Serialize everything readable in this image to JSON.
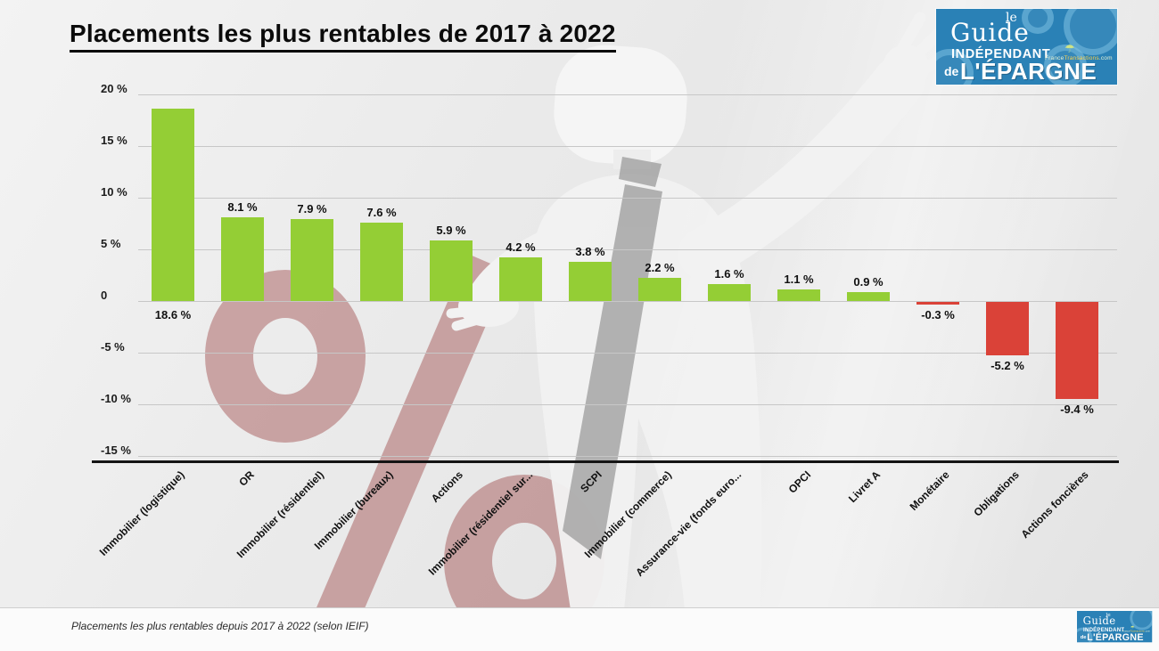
{
  "title": "Placements les plus rentables de 2017 à 2022",
  "caption": "Placements les plus rentables depuis 2017 à 2022 (selon IEIF)",
  "logo": {
    "le": "le",
    "guide": "Guide",
    "independant": "INDÉPENDANT",
    "de": "de",
    "epargne": "L'ÉPARGNE",
    "site_prefix": "France",
    "site_mid": "Transactions",
    "site_suffix": ".com",
    "umbrella_icon": "☂"
  },
  "chart_data": {
    "type": "bar",
    "title": "Placements les plus rentables de 2017 à 2022",
    "xlabel": "",
    "ylabel": "",
    "grid": true,
    "legend": false,
    "ylim": [
      -15,
      20
    ],
    "categories": [
      "Immobilier (logistique)",
      "OR",
      "Immobilier (résidentiel)",
      "Immobilier (bureaux)",
      "Actions",
      "Immobilier (résidentiel sur...",
      "SCPI",
      "Immobilier (commerce)",
      "Assurance-vie (fonds euro...",
      "OPCI",
      "Livret A",
      "Monétaire",
      "Obligations",
      "Actions foncières"
    ],
    "values": [
      18.6,
      8.1,
      7.9,
      7.6,
      5.9,
      4.2,
      3.8,
      2.2,
      1.6,
      1.1,
      0.9,
      -0.3,
      -5.2,
      -9.4
    ],
    "value_labels": [
      "18.6 %",
      "8.1 %",
      "7.9 %",
      "7.6 %",
      "5.9 %",
      "4.2 %",
      "3.8 %",
      "2.2 %",
      "1.6 %",
      "1.1 %",
      "0.9 %",
      "-0.3 %",
      "-5.2 %",
      "-9.4 %"
    ],
    "y_ticks": [
      {
        "label": "20 %",
        "value": 20
      },
      {
        "label": "15 %",
        "value": 15
      },
      {
        "label": "10 %",
        "value": 10
      },
      {
        "label": "5 %",
        "value": 5
      },
      {
        "label": "0",
        "value": 0
      },
      {
        "label": "-5 %",
        "value": -5
      },
      {
        "label": "-10 %",
        "value": -10
      },
      {
        "label": "-15 %",
        "value": -15
      }
    ],
    "colors": {
      "positive": "#94ce35",
      "negative": "#da4238"
    }
  }
}
